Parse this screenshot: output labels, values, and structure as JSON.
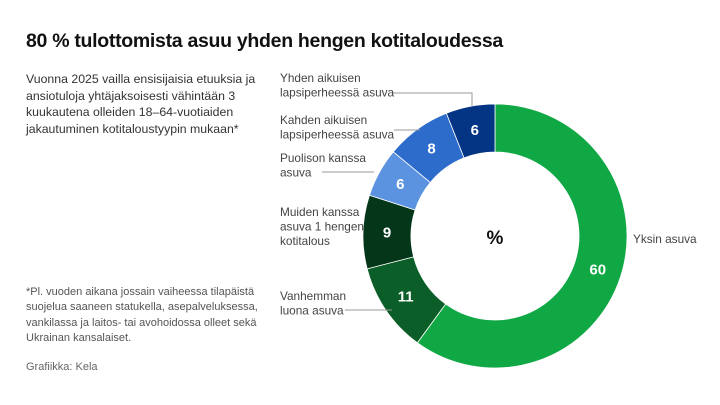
{
  "title": "80 % tulottomista asuu yhden hengen kotitaloudessa",
  "subtitle": "Vuonna 2025 vailla ensisijaisia etuuksia ja ansiotuloja yhtäjaksoisesti vähintään 3 kuukautena olleiden 18–64-vuotiaiden jakautuminen kotitaloustyypin mukaan*",
  "footnote": "*Pl. vuoden aikana jossain vaiheessa tilapäistä suojelua saaneen statukella, asepalveluksessa, vankilassa ja laitos- tai avohoidossa olleet sekä Ukrainan kansalaiset.",
  "source": "Grafiikka: Kela",
  "chart_data": {
    "type": "pie",
    "subtype": "donut",
    "title": "80 % tulottomista asuu yhden hengen kotitaloudessa",
    "center_label": "%",
    "unit": "%",
    "categories": [
      "Yksin asuva",
      "Vanhemman luona asuva",
      "Muiden kanssa asuva 1 hengen kotitalous",
      "Puolison kanssa asuva",
      "Kahden aikuisen lapsiperheessä asuva",
      "Yhden aikuisen lapsiperheessä asuva"
    ],
    "values": [
      60,
      11,
      9,
      6,
      8,
      6
    ],
    "colors": [
      "#0fa844",
      "#0b5e27",
      "#04361a",
      "#5b93e0",
      "#2d6ccb",
      "#033584"
    ],
    "label_lines": [
      [
        "Yksin asuva"
      ],
      [
        "Vanhemman",
        "luona asuva"
      ],
      [
        "Muiden kanssa",
        "asuva 1 hengen",
        "kotitalous"
      ],
      [
        "Puolison kanssa",
        "asuva"
      ],
      [
        "Kahden aikuisen",
        "lapsiperheessä asuva"
      ],
      [
        "Yhden aikuisen",
        "lapsiperheessä asuva"
      ]
    ],
    "start_angle": "12 o'clock, clockwise",
    "legend": "direct labels"
  }
}
